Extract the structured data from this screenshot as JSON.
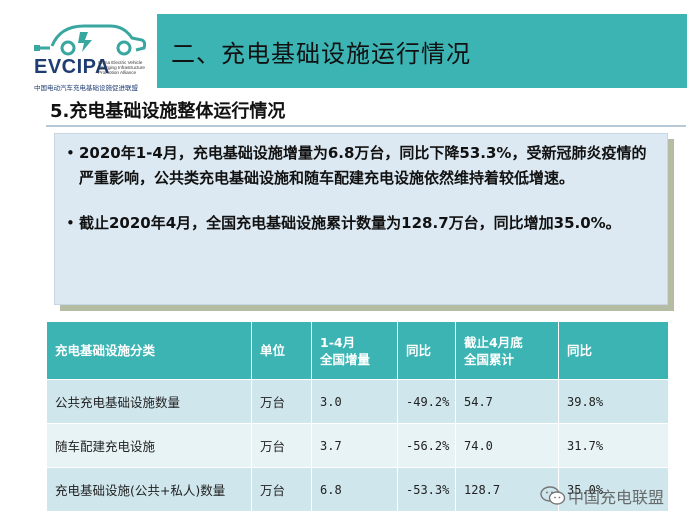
{
  "logo": {
    "name": "EVCIPA",
    "english": "China Electric Vehicle Charging Infrastructure Promotion Alliance",
    "chinese": "中国电动汽车充电基础设施促进联盟"
  },
  "header": {
    "title": "二、充电基础设施运行情况"
  },
  "section": {
    "subtitle": "5.充电基础设施整体运行情况"
  },
  "bullets": [
    "2020年1-4月，充电基础设施增量为6.8万台，同比下降53.3%，受新冠肺炎疫情的严重影响，公共类充电基础设施和随车配建充电设施依然维持着较低增速。",
    "截止2020年4月，全国充电基础设施累计数量为128.7万台，同比增加35.0%。"
  ],
  "table": {
    "headers": [
      "充电基础设施分类",
      "单位",
      "1-4月\n全国增量",
      "同比",
      "截止4月底\n全国累计",
      "同比"
    ],
    "rows": [
      [
        "公共充电基础设施数量",
        "万台",
        "3.0",
        "-49.2%",
        "54.7",
        "39.8%"
      ],
      [
        "随车配建充电设施",
        "万台",
        "3.7",
        "-56.2%",
        "74.0",
        "31.7%"
      ],
      [
        "充电基础设施(公共+私人)数量",
        "万台",
        "6.8",
        "-53.3%",
        "128.7",
        "35.0%"
      ]
    ]
  },
  "watermark": {
    "text": "中国充电联盟",
    "icon": "wechat-icon"
  },
  "colors": {
    "accent": "#3bb4b3",
    "content_bg": "#dce9f2",
    "row_dark": "#cfe6ec",
    "row_light": "#e8f3f6",
    "logo_blue": "#1f3d73",
    "logo_green": "#3aa6a0"
  }
}
